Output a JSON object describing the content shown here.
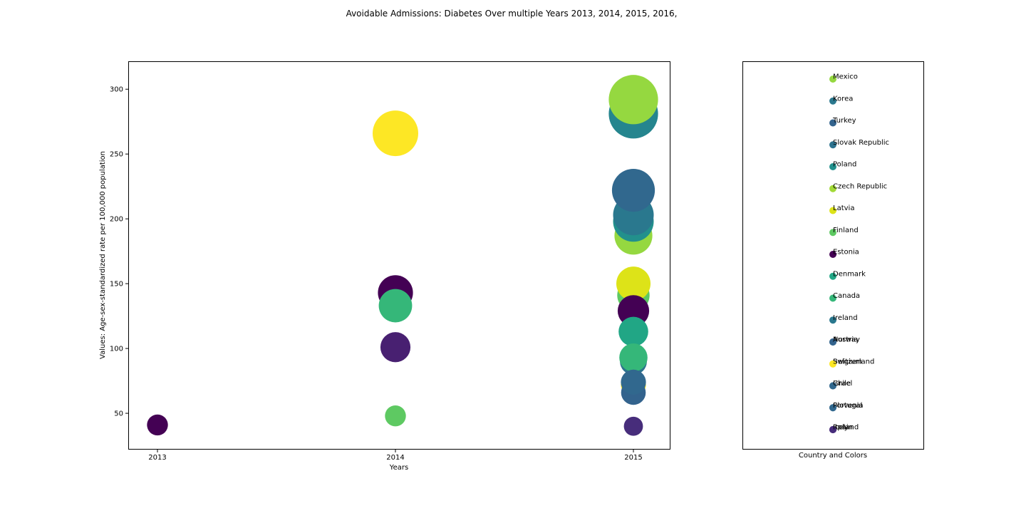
{
  "title": "Avoidable Admissions: Diabetes Over multiple Years 2013, 2014, 2015, 2016,",
  "chart_data": [
    {
      "type": "scatter",
      "xlabel": "Years",
      "ylabel": "Values: Age-sex-standardized rate per 100,000 population",
      "x_ticks": [
        "2013",
        "2014",
        "2015"
      ],
      "y_ticks": [
        50,
        100,
        150,
        200,
        250,
        300
      ],
      "ylim": [
        22,
        321
      ],
      "grid": false,
      "points": [
        {
          "x": "2013",
          "y": 41,
          "size": 0.46,
          "color": "#440154"
        },
        {
          "x": "2014",
          "y": 266,
          "size": 1.0,
          "color": "#fde725"
        },
        {
          "x": "2014",
          "y": 143,
          "size": 0.77,
          "color": "#440154"
        },
        {
          "x": "2014",
          "y": 133,
          "size": 0.73,
          "color": "#35b779"
        },
        {
          "x": "2014",
          "y": 101,
          "size": 0.66,
          "color": "#482071"
        },
        {
          "x": "2014",
          "y": 48,
          "size": 0.46,
          "color": "#5ec962"
        },
        {
          "x": "2015",
          "y": 281,
          "size": 1.08,
          "color": "#25858e"
        },
        {
          "x": "2015",
          "y": 292,
          "size": 1.08,
          "color": "#95d840"
        },
        {
          "x": "2015",
          "y": 187,
          "size": 0.83,
          "color": "#95d840"
        },
        {
          "x": "2015",
          "y": 198,
          "size": 0.89,
          "color": "#22908c"
        },
        {
          "x": "2015",
          "y": 203,
          "size": 0.89,
          "color": "#2a788e"
        },
        {
          "x": "2015",
          "y": 222,
          "size": 0.94,
          "color": "#31688e"
        },
        {
          "x": "2015",
          "y": 141,
          "size": 0.71,
          "color": "#5ec962"
        },
        {
          "x": "2015",
          "y": 150,
          "size": 0.75,
          "color": "#dde318"
        },
        {
          "x": "2015",
          "y": 129,
          "size": 0.69,
          "color": "#440154"
        },
        {
          "x": "2015",
          "y": 113,
          "size": 0.65,
          "color": "#21a685"
        },
        {
          "x": "2015",
          "y": 90,
          "size": 0.59,
          "color": "#2c728e"
        },
        {
          "x": "2015",
          "y": 93,
          "size": 0.62,
          "color": "#35b779"
        },
        {
          "x": "2015",
          "y": 72,
          "size": 0.55,
          "color": "#fde725"
        },
        {
          "x": "2015",
          "y": 66,
          "size": 0.54,
          "color": "#33638d"
        },
        {
          "x": "2015",
          "y": 74,
          "size": 0.55,
          "color": "#31688e"
        },
        {
          "x": "2015",
          "y": 40,
          "size": 0.42,
          "color": "#472d7b"
        }
      ]
    },
    {
      "type": "legend",
      "xlabel": "Country and Colors",
      "entries": [
        {
          "label": "Mexico",
          "color": "#95d840"
        },
        {
          "label": "Korea",
          "color": "#2a788e"
        },
        {
          "label": "Turkey",
          "color": "#33638d"
        },
        {
          "label": "Slovak Republic",
          "color": "#2c728e"
        },
        {
          "label": "Poland",
          "color": "#22908c"
        },
        {
          "label": "Czech Republic",
          "color": "#a2da37"
        },
        {
          "label": "Latvia",
          "color": "#dde318"
        },
        {
          "label": "Finland",
          "color": "#5ec962"
        },
        {
          "label": "Estonia",
          "color": "#440154"
        },
        {
          "label": "Denmark",
          "color": "#21a685"
        },
        {
          "label": "Canada",
          "color": "#35b779"
        },
        {
          "label": "Ireland",
          "color": "#2a788e"
        },
        {
          "label": "Norway",
          "color": "#2c728e"
        },
        {
          "label": "Austria",
          "color": "#33638d"
        },
        {
          "label": "Belgium",
          "color": "#fde725"
        },
        {
          "label": "Switzerland",
          "color": "#fde725"
        },
        {
          "label": "Israel",
          "color": "#31688e"
        },
        {
          "label": "Chile",
          "color": "#31688e"
        },
        {
          "label": "Slovenia",
          "color": "#33638d"
        },
        {
          "label": "Portugal",
          "color": "#31688e"
        },
        {
          "label": "Italy",
          "color": "#472d7b"
        },
        {
          "label": "Spain",
          "color": "#482071"
        },
        {
          "label": "Iceland",
          "color": "#472d7b"
        }
      ],
      "rows": [
        [
          "Mexico"
        ],
        [
          "Korea"
        ],
        [
          "Turkey"
        ],
        [
          "Slovak Republic"
        ],
        [
          "Poland"
        ],
        [
          "Czech Republic"
        ],
        [
          "Latvia"
        ],
        [
          "Finland"
        ],
        [
          "Estonia"
        ],
        [
          "Denmark"
        ],
        [
          "Canada"
        ],
        [
          "Ireland"
        ],
        [
          "Norway",
          "Austria"
        ],
        [
          "Belgium",
          "Switzerland"
        ],
        [
          "Israel",
          "Chile"
        ],
        [
          "Slovenia",
          "Portugal"
        ],
        [
          "Italy",
          "Spain",
          "Iceland"
        ]
      ]
    }
  ]
}
